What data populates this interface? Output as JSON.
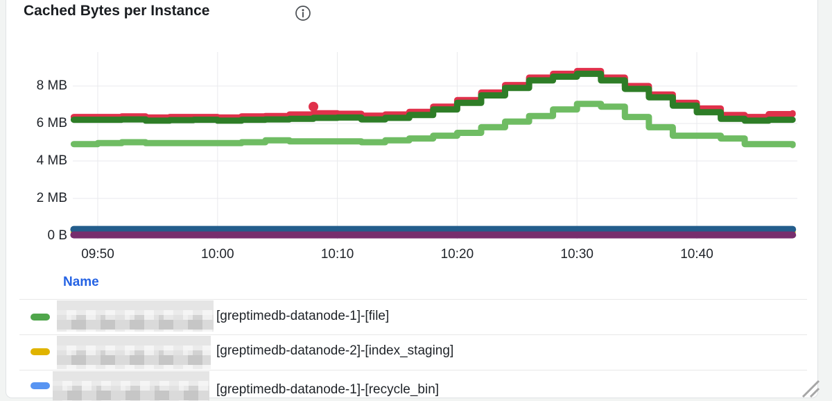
{
  "panel": {
    "title": "Cached Bytes per Instance"
  },
  "colors": {
    "page_bg": "#f2f4f3",
    "panel_bg": "#ffffff",
    "panel_border": "#e0e3e5",
    "grid": "#e9eaec",
    "axis_text": "#1f2329",
    "title_text": "#1a1d21",
    "legend_header_text": "#2563e4",
    "legend_text": "#1f2328",
    "separator": "#e8e8e8",
    "resize_handle": "#a6a6a6",
    "info_icon": "#4a4e53"
  },
  "chart_data": {
    "type": "line",
    "style": "thick dotted step series (point-rendered)",
    "title": "Cached Bytes per Instance",
    "grid": true,
    "legend_position": "bottom-table",
    "x_axis": {
      "unit": "time",
      "start": "09:48",
      "end": "10:48",
      "ticks": [
        {
          "t": 2,
          "label": "09:50"
        },
        {
          "t": 12,
          "label": "10:00"
        },
        {
          "t": 22,
          "label": "10:10"
        },
        {
          "t": 32,
          "label": "10:20"
        },
        {
          "t": 42,
          "label": "10:30"
        },
        {
          "t": 52,
          "label": "10:40"
        }
      ]
    },
    "y_axis": {
      "unit": "bytes",
      "range_mb": [
        0,
        9.8
      ],
      "ticks": [
        {
          "v": 0,
          "label": "0 B"
        },
        {
          "v": 2,
          "label": "2 MB"
        },
        {
          "v": 4,
          "label": "4 MB"
        },
        {
          "v": 6,
          "label": "6 MB"
        },
        {
          "v": 8,
          "label": "8 MB"
        }
      ]
    },
    "series": [
      {
        "id": "gold-flat",
        "color": "#E0B400",
        "width": 9,
        "t_minutes": [
          0,
          60
        ],
        "mb": [
          0.2,
          0.2
        ]
      },
      {
        "id": "dark-blue-flat",
        "color": "#235d8c",
        "width": 10,
        "t_minutes": [
          0,
          60
        ],
        "mb": [
          0.35,
          0.35
        ]
      },
      {
        "id": "purple-flat",
        "color": "#772e6d",
        "width": 10,
        "t_minutes": [
          0,
          60
        ],
        "mb": [
          0.05,
          0.05
        ]
      },
      {
        "id": "light-green",
        "color": "#6fbc63",
        "width": 9,
        "t_minutes": [
          0,
          2,
          4,
          6,
          8,
          10,
          12,
          14,
          16,
          18,
          20,
          22,
          24,
          26,
          28,
          30,
          32,
          34,
          36,
          38,
          40,
          42,
          44,
          46,
          48,
          50,
          52,
          54,
          56,
          58,
          60
        ],
        "mb": [
          4.9,
          4.95,
          5.0,
          4.95,
          4.95,
          4.95,
          4.95,
          5.0,
          5.1,
          5.05,
          5.05,
          5.05,
          5.0,
          5.1,
          5.2,
          5.35,
          5.5,
          5.8,
          6.1,
          6.4,
          6.75,
          7.05,
          6.9,
          6.35,
          5.8,
          5.35,
          5.35,
          5.2,
          4.9,
          4.9,
          4.85
        ]
      },
      {
        "id": "red",
        "color": "#e0314b",
        "width": 9,
        "t_minutes": [
          0,
          2,
          4,
          6,
          8,
          10,
          12,
          14,
          16,
          18,
          20,
          22,
          24,
          26,
          28,
          30,
          32,
          34,
          36,
          38,
          40,
          42,
          44,
          46,
          48,
          50,
          52,
          54,
          56,
          58,
          60
        ],
        "mb": [
          6.35,
          6.35,
          6.38,
          6.32,
          6.35,
          6.35,
          6.32,
          6.38,
          6.4,
          6.48,
          6.55,
          6.52,
          6.42,
          6.48,
          6.62,
          6.9,
          7.25,
          7.65,
          8.05,
          8.45,
          8.65,
          8.8,
          8.45,
          8.0,
          7.55,
          7.1,
          6.8,
          6.45,
          6.35,
          6.5,
          6.55
        ]
      },
      {
        "id": "dark-green",
        "color": "#2e7d27",
        "width": 9,
        "t_minutes": [
          0,
          2,
          4,
          6,
          8,
          10,
          12,
          14,
          16,
          18,
          20,
          22,
          24,
          26,
          28,
          30,
          32,
          34,
          36,
          38,
          40,
          42,
          44,
          46,
          48,
          50,
          52,
          54,
          56,
          58,
          60
        ],
        "mb": [
          6.2,
          6.2,
          6.22,
          6.15,
          6.18,
          6.2,
          6.15,
          6.2,
          6.22,
          6.25,
          6.3,
          6.32,
          6.22,
          6.3,
          6.45,
          6.75,
          7.1,
          7.5,
          7.9,
          8.3,
          8.5,
          8.65,
          8.3,
          7.85,
          7.4,
          6.95,
          6.6,
          6.25,
          6.15,
          6.2,
          6.2
        ]
      }
    ],
    "outlier_point": {
      "series": "red",
      "t": 20,
      "mb": 6.9,
      "color": "#e0314b"
    }
  },
  "legend": {
    "header": "Name",
    "rows": [
      {
        "color": "#4FA64B",
        "censored_prefix": true,
        "visible_text": "[greptimedb-datanode-1]-[file]"
      },
      {
        "color": "#E0B400",
        "censored_prefix": true,
        "visible_text": "[greptimedb-datanode-2]-[index_staging]"
      },
      {
        "color": "#5794F2",
        "censored_prefix": true,
        "visible_text": "[greptimedb-datanode-1]-[recycle_bin]"
      }
    ]
  }
}
